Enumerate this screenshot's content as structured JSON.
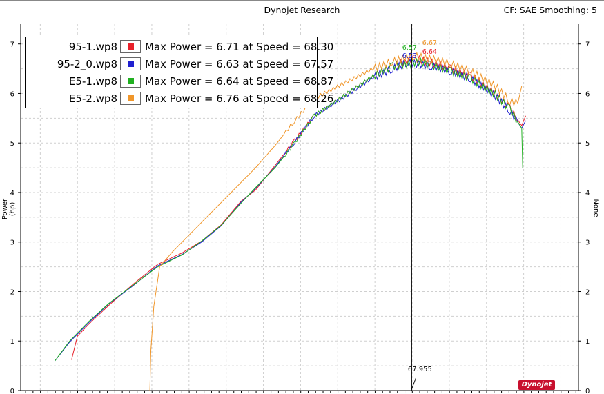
{
  "header": {
    "title": "Dynojet Research",
    "right_info": "CF: SAE Smoothing: 5"
  },
  "axes": {
    "ylabel_left": "Power (hp)",
    "ylabel_right": "None",
    "marker_label": "67.955"
  },
  "logo": {
    "text": "Dynojet"
  },
  "legend": [
    {
      "file": "95-1.wp8",
      "text": "Max Power = 6.71 at Speed = 68.30",
      "color": "#e8202a"
    },
    {
      "file": "95-2_0.wp8",
      "text": "Max Power = 6.63 at Speed = 67.57",
      "color": "#2020d0"
    },
    {
      "file": "E5-1.wp8",
      "text": "Max Power = 6.64 at Speed = 68.87",
      "color": "#20b020"
    },
    {
      "file": "E5-2.wp8",
      "text": "Max Power = 6.76 at Speed = 68.26",
      "color": "#f0962a"
    }
  ],
  "chart_data": {
    "type": "line",
    "title": "Dynojet Research",
    "ylabel": "Power (hp)",
    "ylim": [
      0,
      7.4
    ],
    "xlim": [
      28,
      85
    ],
    "grid": true,
    "legend_position": "top-left",
    "cursor_x": 67.955,
    "cursor_values": [
      {
        "label": "6.57",
        "color": "#20b020"
      },
      {
        "label": "6.53",
        "color": "#2020d0"
      },
      {
        "label": "6.67",
        "color": "#f0962a"
      },
      {
        "label": "6.64",
        "color": "#e8202a"
      }
    ],
    "series": [
      {
        "name": "95-1.wp8",
        "color": "#e8202a",
        "x": [
          33.2,
          33.8,
          35,
          37,
          39.5,
          42,
          44.5,
          46.5,
          48.5,
          50.5,
          52,
          54,
          56,
          58,
          61,
          64,
          66,
          68.3,
          70,
          72,
          74,
          76.5,
          78,
          79.2,
          79.6
        ],
        "y": [
          0.62,
          1.1,
          1.35,
          1.72,
          2.15,
          2.55,
          2.78,
          3.02,
          3.35,
          3.82,
          4.05,
          4.55,
          5.05,
          5.55,
          5.95,
          6.35,
          6.55,
          6.71,
          6.62,
          6.5,
          6.35,
          6.0,
          5.7,
          5.35,
          5.55
        ]
      },
      {
        "name": "95-2_0.wp8",
        "color": "#2020d0",
        "x": [
          31.5,
          33,
          35,
          37,
          39.5,
          42,
          44.5,
          46.5,
          48.5,
          50.5,
          52,
          54,
          56,
          58,
          61,
          64,
          66,
          67.57,
          70,
          72,
          74,
          76.5,
          78,
          79.2,
          79.6
        ],
        "y": [
          0.6,
          0.98,
          1.38,
          1.75,
          2.12,
          2.52,
          2.75,
          3.0,
          3.33,
          3.8,
          4.08,
          4.52,
          5.02,
          5.55,
          5.92,
          6.32,
          6.5,
          6.63,
          6.55,
          6.45,
          6.3,
          5.95,
          5.65,
          5.3,
          5.45
        ]
      },
      {
        "name": "E5-1.wp8",
        "color": "#20b020",
        "x": [
          31.5,
          33,
          35,
          37,
          39.5,
          42,
          44.5,
          46.5,
          48.5,
          50.5,
          52,
          54,
          56,
          58,
          61,
          64,
          66,
          68.87,
          70,
          72,
          74,
          76.5,
          78,
          79.2,
          79.3
        ],
        "y": [
          0.6,
          1.0,
          1.4,
          1.76,
          2.13,
          2.5,
          2.74,
          3.02,
          3.34,
          3.78,
          4.1,
          4.5,
          5.0,
          5.55,
          5.95,
          6.35,
          6.55,
          6.64,
          6.57,
          6.45,
          6.3,
          5.98,
          5.68,
          5.3,
          4.5
        ]
      },
      {
        "name": "E5-2.wp8",
        "color": "#f0962a",
        "x": [
          41.2,
          41.3,
          41.6,
          42.2,
          43.5,
          45.5,
          47.5,
          49.5,
          52,
          54,
          56,
          58,
          61,
          64,
          66,
          68.26,
          70,
          72,
          74,
          76.5,
          78,
          78.8,
          79.2
        ],
        "y": [
          0.0,
          0.8,
          1.7,
          2.5,
          2.8,
          3.2,
          3.6,
          4.0,
          4.5,
          4.95,
          5.45,
          5.9,
          6.2,
          6.5,
          6.65,
          6.76,
          6.7,
          6.6,
          6.45,
          6.15,
          5.85,
          5.8,
          6.15
        ]
      }
    ]
  }
}
